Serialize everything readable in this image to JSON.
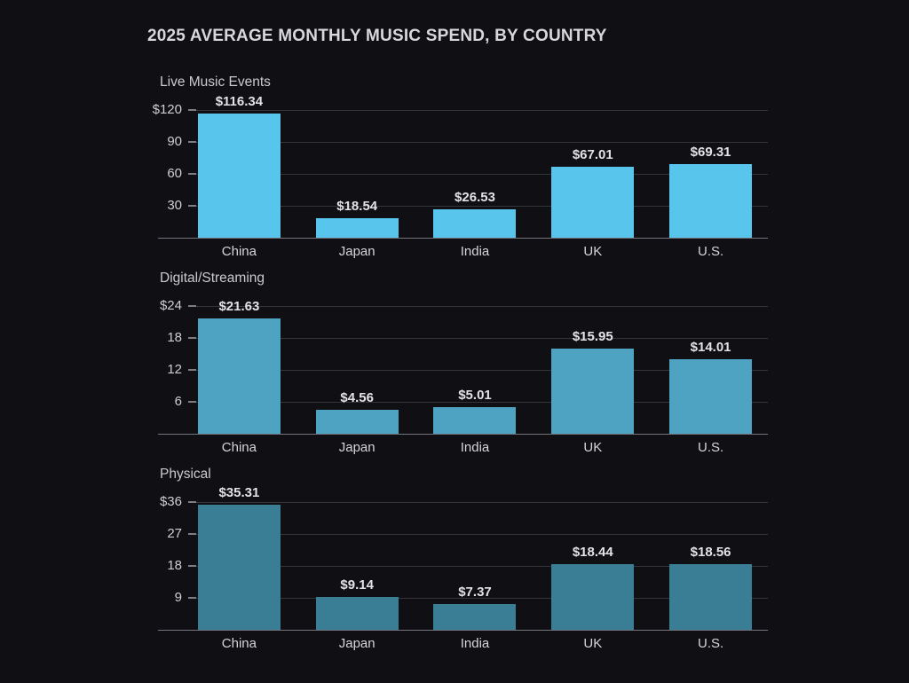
{
  "title": "2025 AVERAGE MONTHLY MUSIC SPEND, BY COUNTRY",
  "colors": {
    "background": "#0f0f14",
    "grid": "#34343b",
    "baseline": "#74747c",
    "text": "#d8d8db",
    "bar_live": "#58c6ec",
    "bar_digital": "#4da3c1",
    "bar_physical": "#397e95"
  },
  "chart_data": [
    {
      "type": "bar",
      "title": "Live Music Events",
      "categories": [
        "China",
        "Japan",
        "India",
        "UK",
        "U.S."
      ],
      "values": [
        116.34,
        18.54,
        26.53,
        67.01,
        69.31
      ],
      "value_labels": [
        "$116.34",
        "$18.54",
        "$26.53",
        "$67.01",
        "$69.31"
      ],
      "yticks": [
        "$120",
        "90",
        "60",
        "30"
      ],
      "ylabel": "",
      "xlabel": "",
      "ylim": [
        0,
        120
      ],
      "grid": true,
      "bar_color": "#58c6ec"
    },
    {
      "type": "bar",
      "title": "Digital/Streaming",
      "categories": [
        "China",
        "Japan",
        "India",
        "UK",
        "U.S."
      ],
      "values": [
        21.63,
        4.56,
        5.01,
        15.95,
        14.01
      ],
      "value_labels": [
        "$21.63",
        "$4.56",
        "$5.01",
        "$15.95",
        "$14.01"
      ],
      "yticks": [
        "$24",
        "18",
        "12",
        "6"
      ],
      "ylabel": "",
      "xlabel": "",
      "ylim": [
        0,
        24
      ],
      "grid": true,
      "bar_color": "#4da3c1"
    },
    {
      "type": "bar",
      "title": "Physical",
      "categories": [
        "China",
        "Japan",
        "India",
        "UK",
        "U.S."
      ],
      "values": [
        35.31,
        9.14,
        7.37,
        18.44,
        18.56
      ],
      "value_labels": [
        "$35.31",
        "$9.14",
        "$7.37",
        "$18.44",
        "$18.56"
      ],
      "yticks": [
        "$36",
        "27",
        "18",
        "9"
      ],
      "ylabel": "",
      "xlabel": "",
      "ylim": [
        0,
        36
      ],
      "grid": true,
      "bar_color": "#397e95"
    }
  ]
}
